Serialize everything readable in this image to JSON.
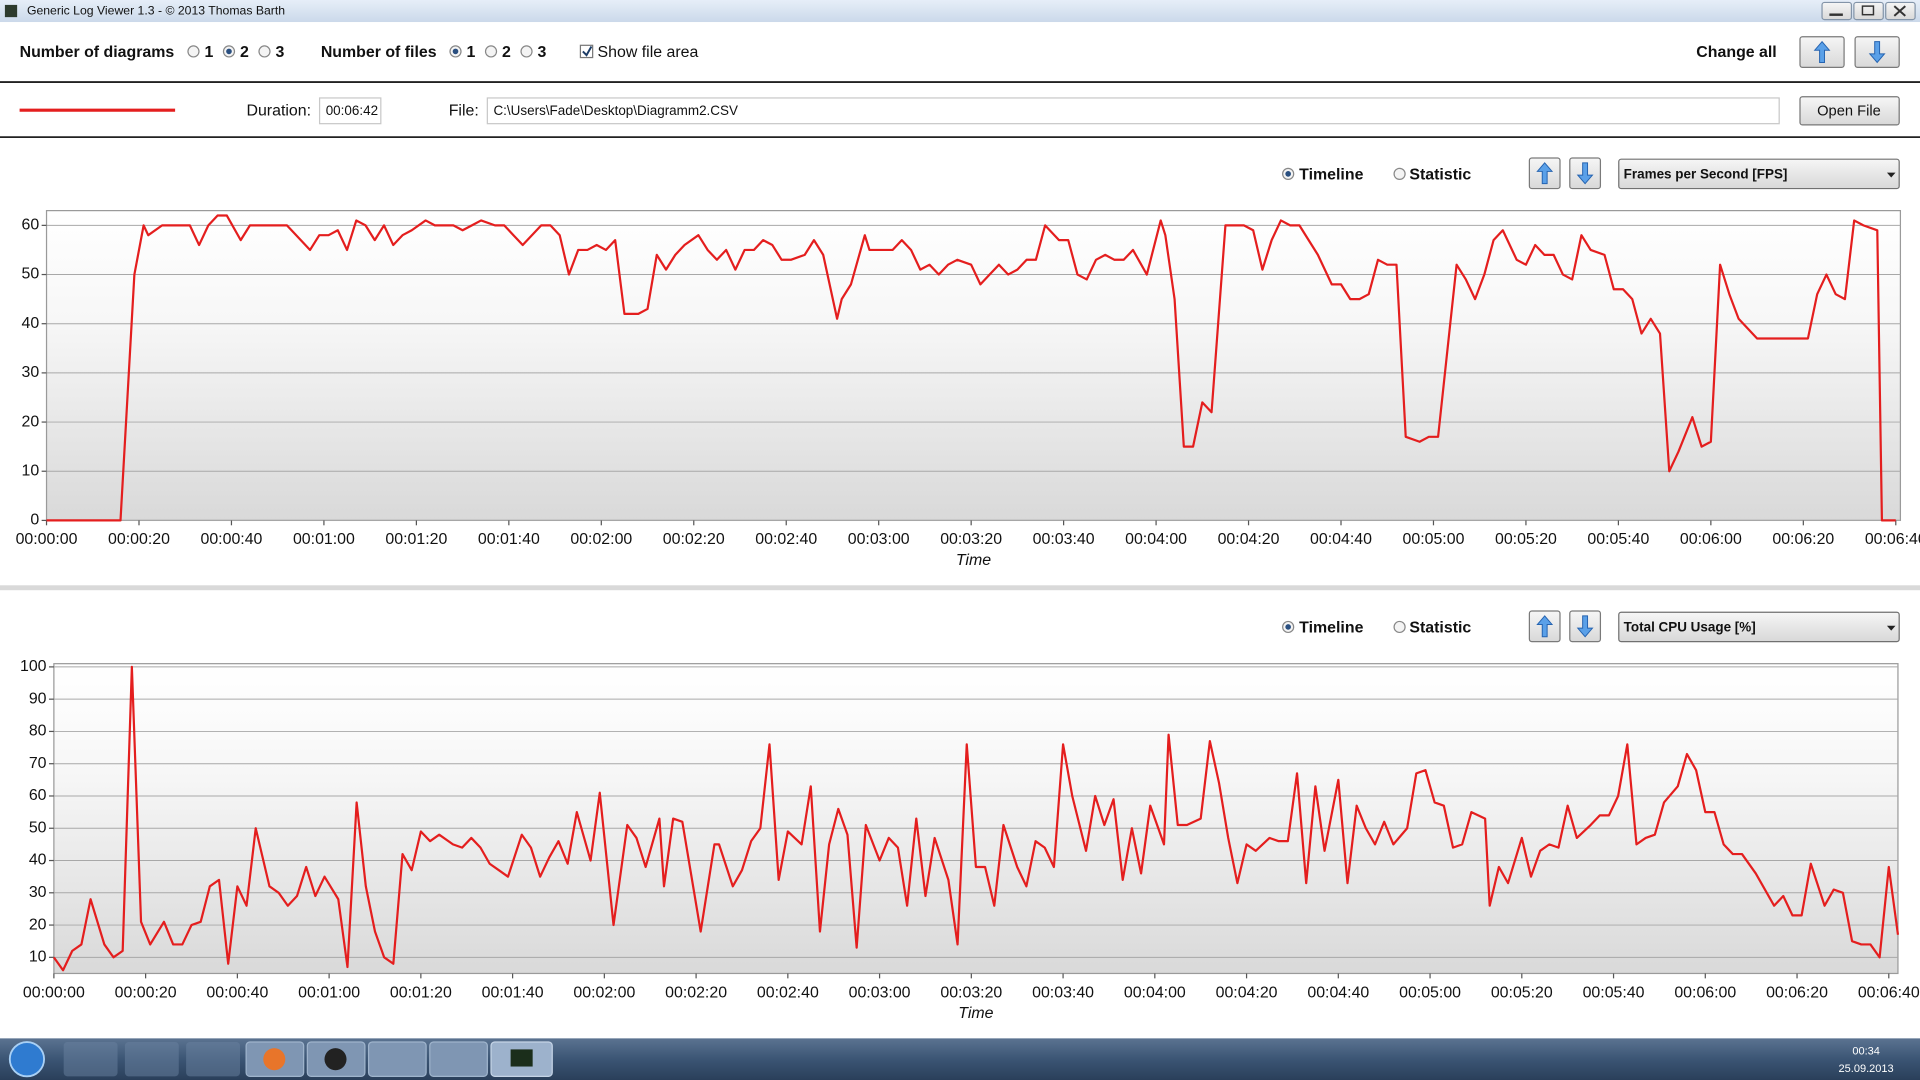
{
  "window": {
    "title": "Generic Log Viewer 1.3 - © 2013 Thomas Barth"
  },
  "toolbar": {
    "diagrams_label": "Number of diagrams",
    "diagram_options": [
      {
        "label": "1",
        "checked": false
      },
      {
        "label": "2",
        "checked": true
      },
      {
        "label": "3",
        "checked": false
      }
    ],
    "files_label": "Number of files",
    "file_options": [
      {
        "label": "1",
        "checked": true
      },
      {
        "label": "2",
        "checked": false
      },
      {
        "label": "3",
        "checked": false
      }
    ],
    "show_file_area": {
      "label": "Show file area",
      "checked": true
    },
    "change_all": "Change all"
  },
  "file_area": {
    "duration_label": "Duration:",
    "duration": "00:06:42",
    "file_label": "File:",
    "file_path": "C:\\Users\\Fade\\Desktop\\Diagramm2.CSV",
    "open_file": "Open File"
  },
  "panels": [
    {
      "views": [
        {
          "label": "Timeline",
          "checked": true
        },
        {
          "label": "Statistic",
          "checked": false
        }
      ],
      "metric": "Frames per Second [FPS]"
    },
    {
      "views": [
        {
          "label": "Timeline",
          "checked": true
        },
        {
          "label": "Statistic",
          "checked": false
        }
      ],
      "metric": "Total CPU Usage [%]"
    }
  ],
  "taskbar": {
    "time": "00:34",
    "date": "25.09.2013"
  },
  "chart_data": [
    {
      "type": "line",
      "xlabel": "Time",
      "color": "#e41e1e",
      "grid": true,
      "xlim": [
        0,
        401
      ],
      "ylim": [
        0,
        63
      ],
      "yticks": [
        0,
        10,
        20,
        30,
        40,
        50,
        60
      ],
      "xticks": [
        {
          "value": 0,
          "label": "00:00:00"
        },
        {
          "value": 20,
          "label": "00:00:20"
        },
        {
          "value": 40,
          "label": "00:00:40"
        },
        {
          "value": 60,
          "label": "00:01:00"
        },
        {
          "value": 80,
          "label": "00:01:20"
        },
        {
          "value": 100,
          "label": "00:01:40"
        },
        {
          "value": 120,
          "label": "00:02:00"
        },
        {
          "value": 140,
          "label": "00:02:20"
        },
        {
          "value": 160,
          "label": "00:02:40"
        },
        {
          "value": 180,
          "label": "00:03:00"
        },
        {
          "value": 200,
          "label": "00:03:20"
        },
        {
          "value": 220,
          "label": "00:03:40"
        },
        {
          "value": 240,
          "label": "00:04:00"
        },
        {
          "value": 260,
          "label": "00:04:20"
        },
        {
          "value": 280,
          "label": "00:04:40"
        },
        {
          "value": 300,
          "label": "00:05:00"
        },
        {
          "value": 320,
          "label": "00:05:20"
        },
        {
          "value": 340,
          "label": "00:05:40"
        },
        {
          "value": 360,
          "label": "00:06:00"
        },
        {
          "value": 380,
          "label": "00:06:20"
        },
        {
          "value": 400,
          "label": "00:06:40"
        }
      ],
      "x": [
        0,
        16,
        19,
        21,
        22,
        25,
        31,
        33,
        35,
        37,
        39,
        42,
        44,
        52,
        55,
        57,
        59,
        61,
        63,
        65,
        67,
        69,
        71,
        73,
        75,
        77,
        79,
        82,
        84,
        88,
        90,
        92,
        94,
        97,
        99,
        101,
        103,
        107,
        109,
        111,
        113,
        115,
        117,
        119,
        121,
        123,
        125,
        128,
        130,
        132,
        134,
        136,
        138,
        141,
        143,
        145,
        147,
        149,
        151,
        153,
        155,
        157,
        159,
        161,
        164,
        166,
        168,
        171,
        172,
        174,
        177,
        178,
        183,
        185,
        187,
        189,
        191,
        193,
        195,
        197,
        200,
        202,
        204,
        206,
        208,
        210,
        212,
        214,
        216,
        219,
        221,
        223,
        225,
        227,
        229,
        231,
        233,
        235,
        238,
        241,
        242,
        244,
        246,
        248,
        250,
        252,
        255,
        259,
        261,
        263,
        265,
        267,
        269,
        271,
        273,
        275,
        278,
        280,
        282,
        284,
        286,
        288,
        290,
        292,
        294,
        297,
        299,
        301,
        305,
        307,
        309,
        311,
        313,
        315,
        318,
        320,
        322,
        324,
        326,
        328,
        330,
        332,
        334,
        337,
        339,
        341,
        343,
        345,
        347,
        349,
        351,
        353,
        356,
        358,
        360,
        362,
        364,
        366,
        368,
        370,
        381,
        383,
        385,
        387,
        389,
        391,
        393,
        396,
        397,
        400
      ],
      "values": [
        0,
        0,
        50,
        60,
        58,
        60,
        60,
        56,
        60,
        62,
        62,
        57,
        60,
        60,
        57,
        55,
        58,
        58,
        59,
        55,
        61,
        60,
        57,
        60,
        56,
        58,
        59,
        61,
        60,
        60,
        59,
        60,
        61,
        60,
        60,
        58,
        56,
        60,
        60,
        58,
        50,
        55,
        55,
        56,
        55,
        57,
        42,
        42,
        43,
        54,
        51,
        54,
        56,
        58,
        55,
        53,
        55,
        51,
        55,
        55,
        57,
        56,
        53,
        53,
        54,
        57,
        54,
        41,
        45,
        48,
        58,
        55,
        55,
        57,
        55,
        51,
        52,
        50,
        52,
        53,
        52,
        48,
        50,
        52,
        50,
        51,
        53,
        53,
        60,
        57,
        57,
        50,
        49,
        53,
        54,
        53,
        53,
        55,
        50,
        61,
        58,
        45,
        15,
        15,
        24,
        22,
        60,
        60,
        59,
        51,
        57,
        61,
        60,
        60,
        57,
        54,
        48,
        48,
        45,
        45,
        46,
        53,
        52,
        52,
        17,
        16,
        17,
        17,
        52,
        49,
        45,
        50,
        57,
        59,
        53,
        52,
        56,
        54,
        54,
        50,
        49,
        58,
        55,
        54,
        47,
        47,
        45,
        38,
        41,
        38,
        10,
        14,
        21,
        15,
        16,
        52,
        46,
        41,
        39,
        37,
        37,
        46,
        50,
        46,
        45,
        61,
        60,
        59,
        0,
        0
      ]
    },
    {
      "type": "line",
      "xlabel": "Time",
      "color": "#e41e1e",
      "grid": true,
      "xlim": [
        0,
        402
      ],
      "ylim": [
        5,
        101
      ],
      "yticks": [
        10,
        20,
        30,
        40,
        50,
        60,
        70,
        80,
        90,
        100
      ],
      "xticks": [
        {
          "value": 0,
          "label": "00:00:00"
        },
        {
          "value": 20,
          "label": "00:00:20"
        },
        {
          "value": 40,
          "label": "00:00:40"
        },
        {
          "value": 60,
          "label": "00:01:00"
        },
        {
          "value": 80,
          "label": "00:01:20"
        },
        {
          "value": 100,
          "label": "00:01:40"
        },
        {
          "value": 120,
          "label": "00:02:00"
        },
        {
          "value": 140,
          "label": "00:02:20"
        },
        {
          "value": 160,
          "label": "00:02:40"
        },
        {
          "value": 180,
          "label": "00:03:00"
        },
        {
          "value": 200,
          "label": "00:03:20"
        },
        {
          "value": 220,
          "label": "00:03:40"
        },
        {
          "value": 240,
          "label": "00:04:00"
        },
        {
          "value": 260,
          "label": "00:04:20"
        },
        {
          "value": 280,
          "label": "00:04:40"
        },
        {
          "value": 300,
          "label": "00:05:00"
        },
        {
          "value": 320,
          "label": "00:05:20"
        },
        {
          "value": 340,
          "label": "00:05:40"
        },
        {
          "value": 360,
          "label": "00:06:00"
        },
        {
          "value": 380,
          "label": "00:06:20"
        },
        {
          "value": 400,
          "label": "00:06:40"
        }
      ],
      "x": [
        0,
        2,
        4,
        6,
        8,
        11,
        13,
        15,
        17,
        19,
        21,
        24,
        26,
        28,
        30,
        32,
        34,
        36,
        38,
        40,
        42,
        44,
        47,
        49,
        51,
        53,
        55,
        57,
        59,
        62,
        64,
        66,
        68,
        70,
        72,
        74,
        76,
        78,
        80,
        82,
        84,
        87,
        89,
        91,
        93,
        95,
        97,
        99,
        102,
        104,
        106,
        108,
        110,
        112,
        114,
        117,
        119,
        122,
        125,
        127,
        129,
        132,
        133,
        135,
        137,
        141,
        144,
        145,
        148,
        150,
        152,
        154,
        156,
        158,
        160,
        163,
        165,
        167,
        169,
        171,
        173,
        175,
        177,
        180,
        182,
        184,
        186,
        188,
        190,
        192,
        195,
        197,
        199,
        201,
        203,
        205,
        207,
        210,
        212,
        214,
        216,
        218,
        220,
        222,
        225,
        227,
        229,
        231,
        233,
        235,
        237,
        239,
        242,
        243,
        245,
        247,
        250,
        252,
        254,
        256,
        258,
        260,
        262,
        265,
        267,
        269,
        271,
        273,
        275,
        277,
        280,
        282,
        284,
        286,
        288,
        290,
        292,
        295,
        297,
        299,
        301,
        303,
        305,
        307,
        309,
        312,
        313,
        315,
        317,
        320,
        322,
        324,
        326,
        328,
        330,
        332,
        335,
        337,
        339,
        341,
        343,
        345,
        347,
        349,
        351,
        354,
        356,
        358,
        360,
        362,
        364,
        366,
        368,
        371,
        373,
        375,
        377,
        379,
        381,
        383,
        386,
        388,
        390,
        392,
        394,
        396,
        398,
        400,
        402
      ],
      "values": [
        10,
        6,
        12,
        14,
        28,
        14,
        10,
        12,
        100,
        21,
        14,
        21,
        14,
        14,
        20,
        21,
        32,
        34,
        8,
        32,
        26,
        50,
        32,
        30,
        26,
        29,
        38,
        29,
        35,
        28,
        7,
        58,
        32,
        18,
        10,
        8,
        42,
        37,
        49,
        46,
        48,
        45,
        44,
        47,
        44,
        39,
        37,
        35,
        48,
        44,
        35,
        41,
        46,
        39,
        55,
        40,
        61,
        20,
        51,
        47,
        38,
        53,
        32,
        53,
        52,
        18,
        45,
        45,
        32,
        37,
        46,
        50,
        76,
        34,
        49,
        45,
        63,
        18,
        45,
        56,
        48,
        13,
        51,
        40,
        47,
        44,
        26,
        53,
        29,
        47,
        34,
        14,
        76,
        38,
        38,
        26,
        51,
        38,
        32,
        46,
        44,
        38,
        76,
        60,
        43,
        60,
        51,
        59,
        34,
        50,
        36,
        57,
        45,
        79,
        51,
        51,
        53,
        77,
        64,
        47,
        33,
        45,
        43,
        47,
        46,
        46,
        67,
        33,
        63,
        43,
        65,
        33,
        57,
        50,
        45,
        52,
        45,
        50,
        67,
        68,
        58,
        57,
        44,
        45,
        55,
        53,
        26,
        38,
        33,
        47,
        35,
        43,
        45,
        44,
        57,
        47,
        51,
        54,
        54,
        60,
        76,
        45,
        47,
        48,
        58,
        63,
        73,
        68,
        55,
        55,
        45,
        42,
        42,
        36,
        31,
        26,
        29,
        23,
        23,
        39,
        26,
        31,
        30,
        15,
        14,
        14,
        10,
        38,
        17
      ]
    }
  ]
}
